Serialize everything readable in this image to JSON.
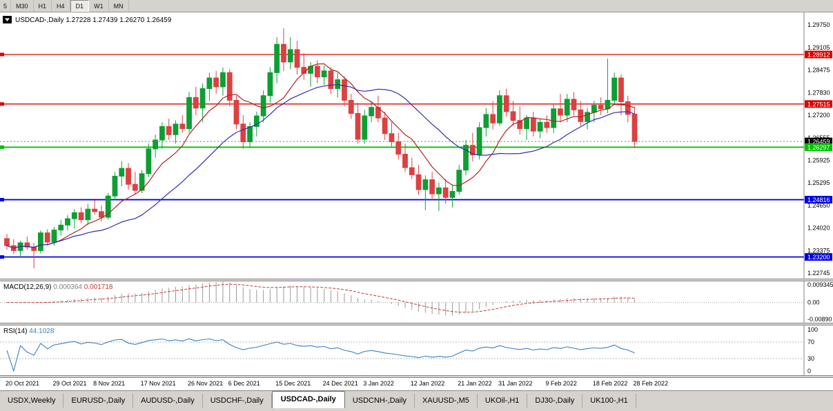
{
  "toolbar": {
    "timeframes": [
      "5",
      "M30",
      "H1",
      "H4",
      "D1",
      "W1",
      "MN"
    ],
    "active_timeframe": "D1"
  },
  "chart": {
    "title": "USDCAD-,Daily",
    "open": "1.27228",
    "high": "1.27439",
    "low": "1.26270",
    "close": "1.26459"
  },
  "price_axis": {
    "ticks": [
      "1.29750",
      "1.29105",
      "1.28475",
      "1.27830",
      "1.27200",
      "1.26555",
      "1.25925",
      "1.25295",
      "1.24650",
      "1.24020",
      "1.23375",
      "1.22745"
    ],
    "current_price": "1.26459",
    "range": {
      "max": 1.3006,
      "min": 1.2259
    }
  },
  "hlines": [
    {
      "value": 1.28912,
      "label": "1.28912",
      "color": "#e00000",
      "kind": "resistance"
    },
    {
      "value": 1.27515,
      "label": "1.27515",
      "color": "#e00000",
      "kind": "resistance"
    },
    {
      "value": 1.26297,
      "label": "1.26297",
      "color": "#00c000",
      "kind": "support"
    },
    {
      "value": 1.24816,
      "label": "1.24816",
      "color": "#0000e8",
      "kind": "support"
    },
    {
      "value": 1.232,
      "label": "1.23200",
      "color": "#0000e8",
      "kind": "support"
    }
  ],
  "chart_data": {
    "type": "candlestick",
    "symbol": "USDCAD-",
    "timeframe": "Daily",
    "title": "USDCAD-,Daily",
    "grid": false,
    "y_range": [
      1.2259,
      1.3006
    ],
    "candles": [
      [
        "2021-10-20",
        1.2372,
        1.2385,
        1.234,
        1.2352
      ],
      [
        "2021-10-21",
        1.2352,
        1.237,
        1.2328,
        1.2338
      ],
      [
        "2021-10-22",
        1.2338,
        1.2366,
        1.2318,
        1.236
      ],
      [
        "2021-10-25",
        1.236,
        1.2378,
        1.234,
        1.2348
      ],
      [
        "2021-10-26",
        1.2348,
        1.236,
        1.2288,
        1.2338
      ],
      [
        "2021-10-27",
        1.2338,
        1.2395,
        1.233,
        1.2388
      ],
      [
        "2021-10-28",
        1.2388,
        1.2398,
        1.2352,
        1.2362
      ],
      [
        "2021-10-29",
        1.2362,
        1.2405,
        1.2352,
        1.2396
      ],
      [
        "2021-11-01",
        1.2396,
        1.2425,
        1.238,
        1.241
      ],
      [
        "2021-11-02",
        1.241,
        1.2438,
        1.2395,
        1.2428
      ],
      [
        "2021-11-03",
        1.2428,
        1.2455,
        1.24,
        1.2445
      ],
      [
        "2021-11-04",
        1.2445,
        1.246,
        1.2415,
        1.2425
      ],
      [
        "2021-11-05",
        1.2425,
        1.247,
        1.241,
        1.2455
      ],
      [
        "2021-11-08",
        1.2455,
        1.248,
        1.244,
        1.2448
      ],
      [
        "2021-11-09",
        1.2448,
        1.2465,
        1.242,
        1.2432
      ],
      [
        "2021-11-10",
        1.2432,
        1.25,
        1.2425,
        1.2492
      ],
      [
        "2021-11-11",
        1.2492,
        1.256,
        1.248,
        1.2548
      ],
      [
        "2021-11-12",
        1.2548,
        1.259,
        1.252,
        1.257
      ],
      [
        "2021-11-15",
        1.257,
        1.2585,
        1.251,
        1.2525
      ],
      [
        "2021-11-16",
        1.2525,
        1.256,
        1.2495,
        1.2508
      ],
      [
        "2021-11-17",
        1.2508,
        1.2565,
        1.25,
        1.2555
      ],
      [
        "2021-11-18",
        1.2555,
        1.264,
        1.2545,
        1.2625
      ],
      [
        "2021-11-19",
        1.2625,
        1.2665,
        1.26,
        1.265
      ],
      [
        "2021-11-22",
        1.265,
        1.27,
        1.2625,
        1.2688
      ],
      [
        "2021-11-23",
        1.2688,
        1.271,
        1.265,
        1.2665
      ],
      [
        "2021-11-24",
        1.2665,
        1.2705,
        1.264,
        1.2695
      ],
      [
        "2021-11-25",
        1.2695,
        1.272,
        1.267,
        1.2682
      ],
      [
        "2021-11-26",
        1.2682,
        1.2785,
        1.267,
        1.277
      ],
      [
        "2021-11-29",
        1.277,
        1.28,
        1.272,
        1.274
      ],
      [
        "2021-11-30",
        1.274,
        1.281,
        1.27,
        1.2795
      ],
      [
        "2021-12-01",
        1.2795,
        1.284,
        1.276,
        1.2825
      ],
      [
        "2021-12-02",
        1.2825,
        1.2845,
        1.278,
        1.28
      ],
      [
        "2021-12-03",
        1.28,
        1.2855,
        1.2775,
        1.284
      ],
      [
        "2021-12-06",
        1.284,
        1.285,
        1.2745,
        1.2762
      ],
      [
        "2021-12-07",
        1.2762,
        1.2775,
        1.268,
        1.2695
      ],
      [
        "2021-12-08",
        1.2695,
        1.272,
        1.2625,
        1.2645
      ],
      [
        "2021-12-09",
        1.2645,
        1.27,
        1.263,
        1.2688
      ],
      [
        "2021-12-10",
        1.2688,
        1.273,
        1.266,
        1.2718
      ],
      [
        "2021-12-13",
        1.2718,
        1.279,
        1.27,
        1.2775
      ],
      [
        "2021-12-14",
        1.2775,
        1.2855,
        1.2755,
        1.284
      ],
      [
        "2021-12-15",
        1.284,
        1.294,
        1.281,
        1.292
      ],
      [
        "2021-12-16",
        1.292,
        1.2965,
        1.2845,
        1.287
      ],
      [
        "2021-12-17",
        1.287,
        1.294,
        1.285,
        1.2905
      ],
      [
        "2021-12-20",
        1.2905,
        1.293,
        1.2835,
        1.2855
      ],
      [
        "2021-12-21",
        1.2855,
        1.2895,
        1.282,
        1.2838
      ],
      [
        "2021-12-22",
        1.2838,
        1.287,
        1.28,
        1.2858
      ],
      [
        "2021-12-23",
        1.2858,
        1.2875,
        1.281,
        1.2828
      ],
      [
        "2021-12-24",
        1.2828,
        1.286,
        1.2805,
        1.2845
      ],
      [
        "2021-12-27",
        1.2845,
        1.2855,
        1.278,
        1.2795
      ],
      [
        "2021-12-28",
        1.2795,
        1.284,
        1.277,
        1.282
      ],
      [
        "2021-12-29",
        1.282,
        1.283,
        1.2745,
        1.2762
      ],
      [
        "2021-12-30",
        1.2762,
        1.278,
        1.271,
        1.2725
      ],
      [
        "2021-12-31",
        1.2725,
        1.2755,
        1.264,
        1.2652
      ],
      [
        "2022-01-03",
        1.2652,
        1.2735,
        1.264,
        1.2718
      ],
      [
        "2022-01-04",
        1.2718,
        1.276,
        1.27,
        1.2742
      ],
      [
        "2022-01-05",
        1.2742,
        1.2775,
        1.27,
        1.2712
      ],
      [
        "2022-01-06",
        1.2712,
        1.273,
        1.265,
        1.2668
      ],
      [
        "2022-01-07",
        1.2668,
        1.27,
        1.2632,
        1.2645
      ],
      [
        "2022-01-10",
        1.2645,
        1.267,
        1.2595,
        1.261
      ],
      [
        "2022-01-11",
        1.261,
        1.264,
        1.256,
        1.2572
      ],
      [
        "2022-01-12",
        1.2572,
        1.26,
        1.254,
        1.2552
      ],
      [
        "2022-01-13",
        1.2552,
        1.258,
        1.2495,
        1.251
      ],
      [
        "2022-01-14",
        1.251,
        1.255,
        1.2452,
        1.2538
      ],
      [
        "2022-01-17",
        1.2538,
        1.256,
        1.248,
        1.2498
      ],
      [
        "2022-01-18",
        1.2498,
        1.253,
        1.245,
        1.2515
      ],
      [
        "2022-01-19",
        1.2515,
        1.254,
        1.247,
        1.2488
      ],
      [
        "2022-01-20",
        1.2488,
        1.2525,
        1.246,
        1.2505
      ],
      [
        "2022-01-21",
        1.2505,
        1.258,
        1.2495,
        1.2565
      ],
      [
        "2022-01-24",
        1.2565,
        1.265,
        1.255,
        1.2635
      ],
      [
        "2022-01-25",
        1.2635,
        1.267,
        1.259,
        1.2608
      ],
      [
        "2022-01-26",
        1.2608,
        1.27,
        1.2595,
        1.2685
      ],
      [
        "2022-01-27",
        1.2685,
        1.274,
        1.266,
        1.2722
      ],
      [
        "2022-01-28",
        1.2722,
        1.276,
        1.268,
        1.2698
      ],
      [
        "2022-01-31",
        1.2698,
        1.279,
        1.269,
        1.2775
      ],
      [
        "2022-02-01",
        1.2775,
        1.2795,
        1.2715,
        1.273
      ],
      [
        "2022-02-02",
        1.273,
        1.276,
        1.269,
        1.2705
      ],
      [
        "2022-02-03",
        1.2705,
        1.2745,
        1.2665,
        1.2682
      ],
      [
        "2022-02-04",
        1.2682,
        1.272,
        1.265,
        1.2712
      ],
      [
        "2022-02-07",
        1.2712,
        1.273,
        1.266,
        1.2675
      ],
      [
        "2022-02-08",
        1.2675,
        1.271,
        1.2655,
        1.27
      ],
      [
        "2022-02-09",
        1.27,
        1.272,
        1.267,
        1.2685
      ],
      [
        "2022-02-10",
        1.2685,
        1.275,
        1.267,
        1.2738
      ],
      [
        "2022-02-11",
        1.2738,
        1.278,
        1.27,
        1.272
      ],
      [
        "2022-02-14",
        1.272,
        1.278,
        1.27,
        1.2765
      ],
      [
        "2022-02-15",
        1.2765,
        1.2785,
        1.272,
        1.2735
      ],
      [
        "2022-02-16",
        1.2735,
        1.276,
        1.269,
        1.2702
      ],
      [
        "2022-02-17",
        1.2702,
        1.274,
        1.268,
        1.2728
      ],
      [
        "2022-02-18",
        1.2728,
        1.276,
        1.27,
        1.2748
      ],
      [
        "2022-02-21",
        1.2748,
        1.277,
        1.272,
        1.2738
      ],
      [
        "2022-02-22",
        1.2738,
        1.288,
        1.2725,
        1.2762
      ],
      [
        "2022-02-23",
        1.2762,
        1.284,
        1.275,
        1.2825
      ],
      [
        "2022-02-24",
        1.2825,
        1.2835,
        1.272,
        1.2758
      ],
      [
        "2022-02-25",
        1.2758,
        1.2775,
        1.27,
        1.2722
      ],
      [
        "2022-02-28",
        1.27228,
        1.27439,
        1.2627,
        1.26459
      ]
    ],
    "date_ticks": [
      {
        "label": "20 Oct 2021",
        "index": 0
      },
      {
        "label": "29 Oct 2021",
        "index": 7
      },
      {
        "label": "8 Nov 2021",
        "index": 13
      },
      {
        "label": "17 Nov 2021",
        "index": 20
      },
      {
        "label": "26 Nov 2021",
        "index": 27
      },
      {
        "label": "6 Dec 2021",
        "index": 33
      },
      {
        "label": "15 Dec 2021",
        "index": 40
      },
      {
        "label": "24 Dec 2021",
        "index": 47
      },
      {
        "label": "3 Jan 2022",
        "index": 53
      },
      {
        "label": "12 Jan 2022",
        "index": 60
      },
      {
        "label": "21 Jan 2022",
        "index": 67
      },
      {
        "label": "31 Jan 2022",
        "index": 73
      },
      {
        "label": "9 Feb 2022",
        "index": 80
      },
      {
        "label": "18 Feb 2022",
        "index": 87
      },
      {
        "label": "28 Feb 2022",
        "index": 93
      }
    ],
    "overlays": [
      {
        "name": "ma-fast-line",
        "type": "sma",
        "period": 8,
        "color": "#b22222"
      },
      {
        "name": "ma-slow-line",
        "type": "sma",
        "period": 20,
        "color": "#2d2db4"
      }
    ],
    "indicators": [
      {
        "name": "macd",
        "params": [
          12,
          26,
          9
        ]
      },
      {
        "name": "rsi",
        "params": [
          14
        ]
      }
    ]
  },
  "macd_panel": {
    "label": "MACD(12,26,9)",
    "value_main": "0.000364",
    "value_signal": "0.001718",
    "scale_top": "0.009345",
    "scale_zero": "0.00",
    "scale_bottom": "-0.00890",
    "range": {
      "max": 0.0104,
      "min": -0.01
    },
    "histogram_color": "#9a9a9a",
    "signal_color": "#c03a3a"
  },
  "rsi_panel": {
    "label": "RSI(14)",
    "value": "44.1028",
    "period": 14,
    "scale": [
      "100",
      "70",
      "30",
      "0"
    ],
    "levels": [
      70,
      30
    ],
    "range": {
      "max": 110,
      "min": -10
    },
    "line_color": "#3c7fc0"
  },
  "tabs": [
    "USDX,Weekly",
    "EURUSD-,Daily",
    "AUDUSD-,Daily",
    "USDCHF-,Daily",
    "USDCAD-,Daily",
    "USDCNH-,Daily",
    "XAUUSD-,M5",
    "UKOil-,H1",
    "DJ30-,Daily",
    "UK100-,H1"
  ],
  "active_tab": "USDCAD-,Daily",
  "colors": {
    "bull": "#0d9e34",
    "bear": "#dd4040",
    "background": "#ffffff",
    "chrome": "#d6d3ce",
    "axis_line": "#808080",
    "current_price_bg": "#000000"
  }
}
